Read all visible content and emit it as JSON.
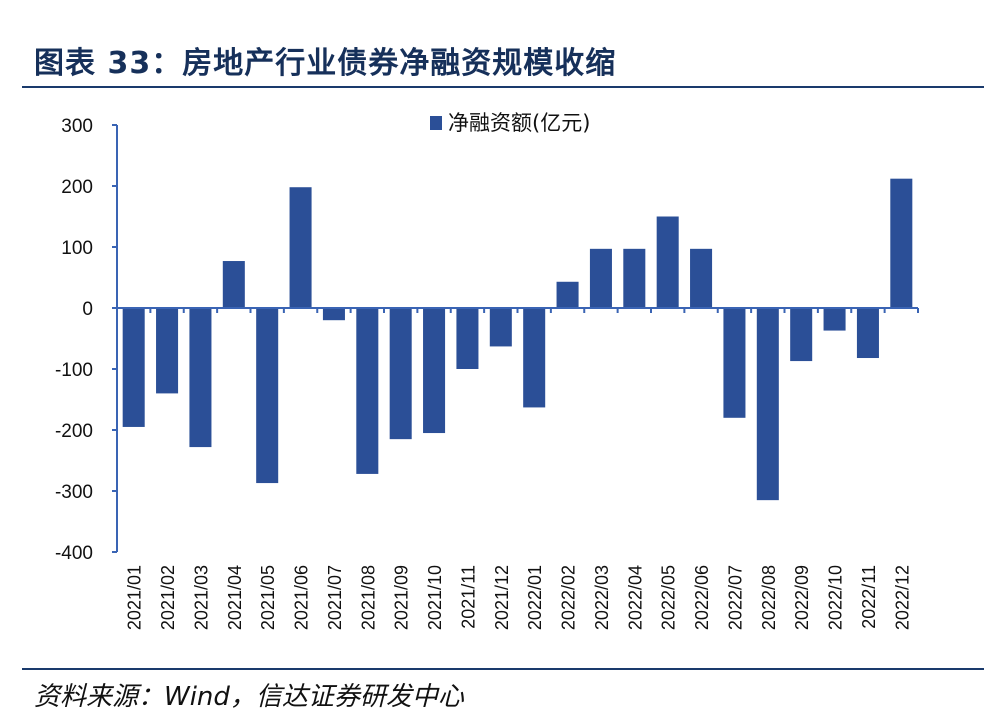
{
  "header": {
    "title": "图表 33：房地产行业债券净融资规模收缩"
  },
  "footer": {
    "source": "资料来源：Wind，信达证券研发中心"
  },
  "colors": {
    "bar": "#2b4f97",
    "axis": "#3a64b4",
    "title": "#16305a",
    "rule": "#1a3a6c"
  },
  "chart_data": {
    "type": "bar",
    "categories": [
      "2021/01",
      "2021/02",
      "2021/03",
      "2021/04",
      "2021/05",
      "2021/06",
      "2021/07",
      "2021/08",
      "2021/09",
      "2021/10",
      "2021/11",
      "2021/12",
      "2022/01",
      "2022/02",
      "2022/03",
      "2022/04",
      "2022/05",
      "2022/06",
      "2022/07",
      "2022/08",
      "2022/09",
      "2022/10",
      "2022/11",
      "2022/12"
    ],
    "series": [
      {
        "name": "净融资额(亿元)",
        "values": [
          -195,
          -140,
          -228,
          77,
          -287,
          198,
          -20,
          -272,
          -215,
          -205,
          -100,
          -63,
          -163,
          43,
          97,
          97,
          150,
          97,
          -180,
          -315,
          -87,
          -37,
          -82,
          212
        ]
      }
    ],
    "yticks": [
      "300",
      "200",
      "100",
      "0",
      "-100",
      "-200",
      "-300",
      "-400"
    ],
    "ylim": [
      -400,
      300
    ],
    "grid": false,
    "legend_position": "top-center"
  }
}
